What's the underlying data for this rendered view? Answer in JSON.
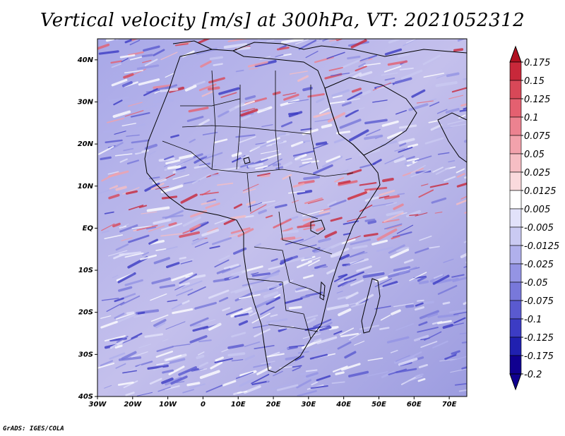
{
  "title": "Vertical velocity [m/s] at 300hPa, VT: 2021052312",
  "footer": "GrADS: IGES/COLA",
  "lat_labels": [
    "40N",
    "30N",
    "20N",
    "10N",
    "EQ",
    "10S",
    "20S",
    "30S",
    "40S"
  ],
  "lat_values": [
    40,
    30,
    20,
    10,
    0,
    -10,
    -20,
    -30,
    -40
  ],
  "lon_labels": [
    "30W",
    "20W",
    "10W",
    "0",
    "10E",
    "20E",
    "30E",
    "40E",
    "50E",
    "60E",
    "70E"
  ],
  "lon_values": [
    -30,
    -20,
    -10,
    0,
    10,
    20,
    30,
    40,
    50,
    60,
    70
  ],
  "colorbar": {
    "labels": [
      "0.175",
      "0.15",
      "0.125",
      "0.1",
      "0.075",
      "0.05",
      "0.025",
      "0.0125",
      "0.005",
      "-0.005",
      "-0.0125",
      "-0.025",
      "-0.05",
      "-0.075",
      "-0.1",
      "-0.125",
      "-0.175",
      "-0.2"
    ],
    "colors": [
      "#b01020",
      "#c8283a",
      "#d84858",
      "#e46070",
      "#ec8290",
      "#f2a2ac",
      "#f6bec4",
      "#fadadd",
      "#ffffff",
      "#e2e2fa",
      "#cacaf2",
      "#b0b0ec",
      "#9494e4",
      "#7878da",
      "#5a5ad0",
      "#3c3cc4",
      "#2020b0",
      "#100090"
    ]
  }
}
